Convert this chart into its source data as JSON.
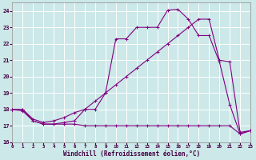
{
  "xlabel": "Windchill (Refroidissement éolien,°C)",
  "background_color": "#cce8e8",
  "grid_color": "#ffffff",
  "line_color": "#800080",
  "xlim": [
    0,
    23
  ],
  "ylim": [
    16,
    24.5
  ],
  "xticks": [
    0,
    1,
    2,
    3,
    4,
    5,
    6,
    7,
    8,
    9,
    10,
    11,
    12,
    13,
    14,
    15,
    16,
    17,
    18,
    19,
    20,
    21,
    22,
    23
  ],
  "yticks": [
    16,
    17,
    18,
    19,
    20,
    21,
    22,
    23,
    24
  ],
  "line1_x": [
    0,
    1,
    2,
    3,
    4,
    5,
    6,
    7,
    8,
    9,
    10,
    11,
    12,
    13,
    14,
    15,
    16,
    17,
    18,
    19,
    20,
    21,
    22,
    23
  ],
  "line1_y": [
    18.0,
    18.0,
    17.3,
    17.1,
    17.1,
    17.2,
    17.3,
    18.0,
    18.0,
    19.0,
    22.3,
    22.3,
    23.0,
    23.0,
    23.0,
    24.05,
    24.1,
    23.5,
    22.5,
    22.5,
    20.9,
    18.3,
    16.5,
    16.7
  ],
  "line2_x": [
    0,
    1,
    2,
    3,
    4,
    5,
    6,
    7,
    8,
    9,
    10,
    11,
    12,
    13,
    14,
    15,
    16,
    17,
    18,
    19,
    20,
    21,
    22,
    23
  ],
  "line2_y": [
    18.0,
    18.0,
    17.4,
    17.2,
    17.3,
    17.5,
    17.8,
    18.0,
    18.5,
    19.0,
    19.5,
    20.0,
    20.5,
    21.0,
    21.5,
    22.0,
    22.5,
    23.0,
    23.5,
    23.5,
    21.0,
    20.9,
    16.6,
    16.7
  ],
  "line3_x": [
    0,
    1,
    2,
    3,
    4,
    5,
    6,
    7,
    8,
    9,
    10,
    11,
    12,
    13,
    14,
    15,
    16,
    17,
    18,
    19,
    20,
    21,
    22,
    23
  ],
  "line3_y": [
    18.0,
    17.9,
    17.3,
    17.1,
    17.1,
    17.1,
    17.1,
    17.0,
    17.0,
    17.0,
    17.0,
    17.0,
    17.0,
    17.0,
    17.0,
    17.0,
    17.0,
    17.0,
    17.0,
    17.0,
    17.0,
    17.0,
    16.5,
    16.7
  ]
}
